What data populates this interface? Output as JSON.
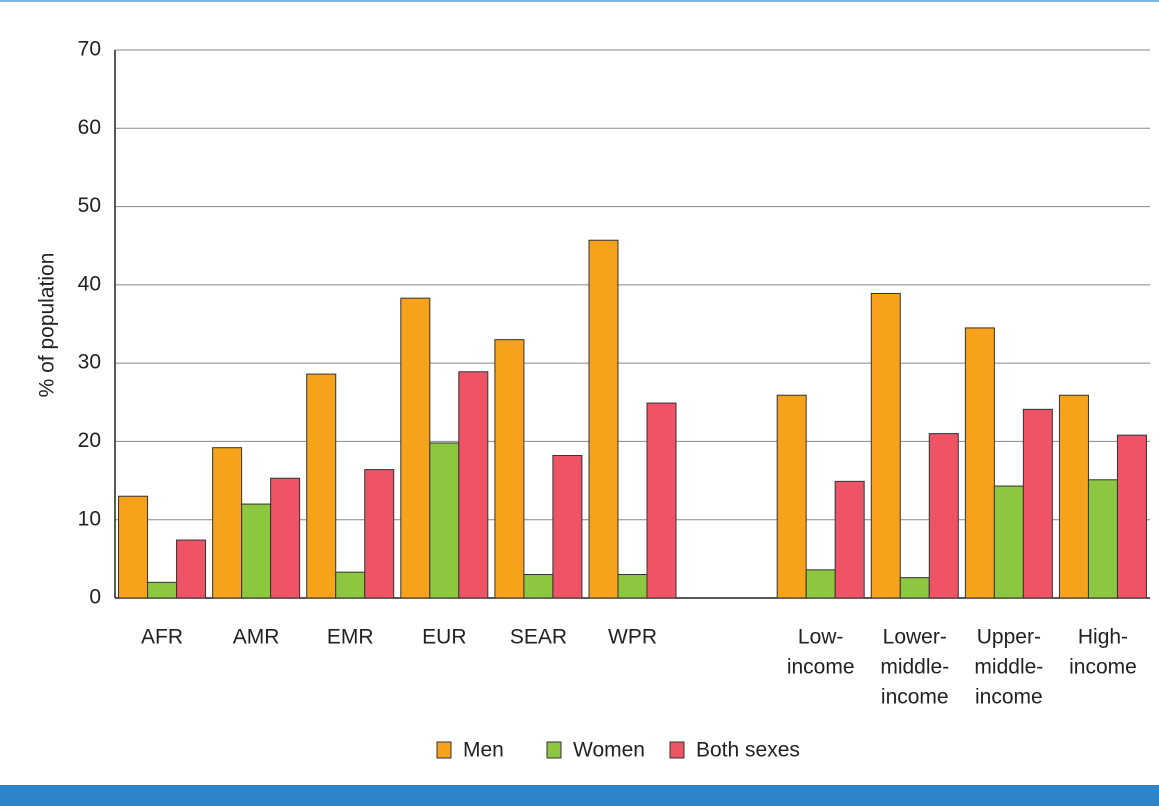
{
  "chart_data": {
    "type": "bar",
    "y_label": "% of population",
    "categories": [
      "AFR",
      "AMR",
      "EMR",
      "EUR",
      "SEAR",
      "WPR",
      null,
      [
        "Low-",
        "income"
      ],
      [
        "Lower-",
        "middle-",
        "income"
      ],
      [
        "Upper-",
        "middle-",
        "income"
      ],
      [
        "High-",
        "income"
      ]
    ],
    "series": [
      {
        "name": "Men",
        "color": "#f7a21b",
        "values": [
          13,
          19.2,
          28.6,
          38.3,
          33,
          45.7,
          null,
          25.9,
          38.9,
          34.5,
          25.9
        ]
      },
      {
        "name": "Women",
        "color": "#8dc63f",
        "values": [
          2,
          12,
          3.3,
          19.8,
          3,
          3,
          null,
          3.6,
          2.6,
          14.3,
          15.1
        ]
      },
      {
        "name": "Both sexes",
        "color": "#ef5466",
        "values": [
          7.4,
          15.3,
          16.4,
          28.9,
          18.2,
          24.9,
          null,
          14.9,
          21,
          24.1,
          20.8
        ]
      }
    ],
    "ylim": [
      0,
      70
    ],
    "yticks": [
      0,
      10,
      20,
      30,
      40,
      50,
      60,
      70
    ],
    "grid": true
  }
}
